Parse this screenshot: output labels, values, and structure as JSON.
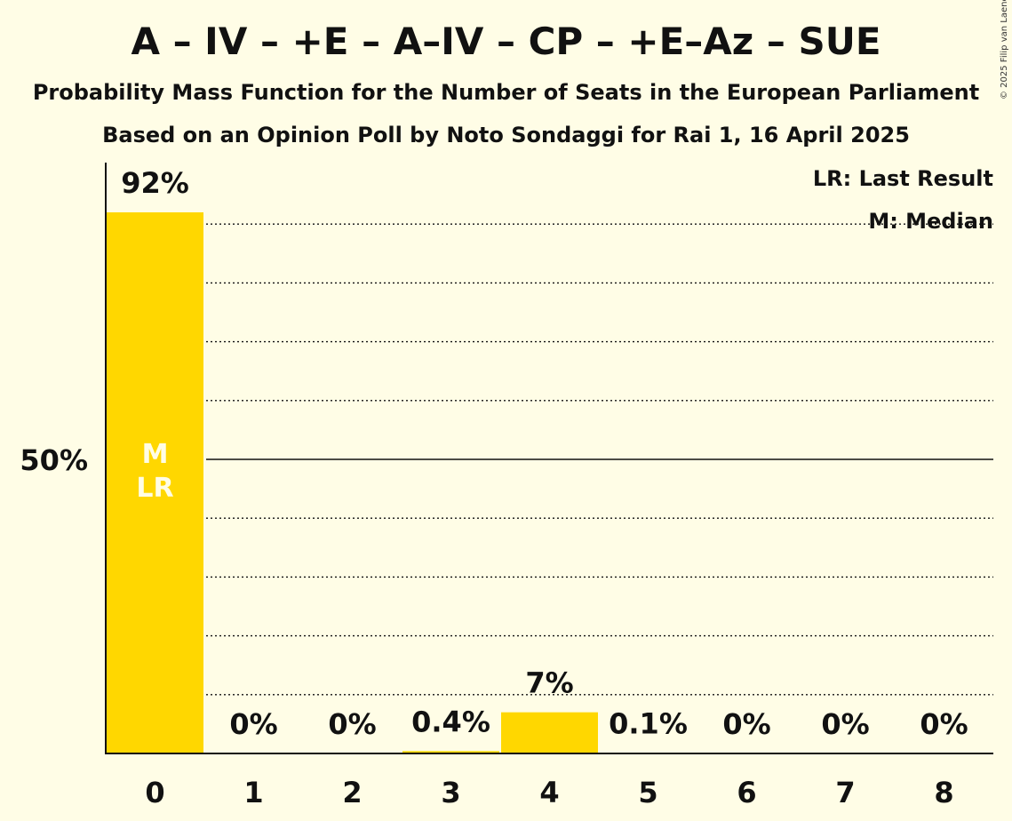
{
  "title": "A – IV – +E – A–IV – CP – +E–Az – SUE",
  "subtitle": "Probability Mass Function for the Number of Seats in the European Parliament",
  "source": "Based on an Opinion Poll by Noto Sondaggi for Rai 1, 16 April 2025",
  "copyright": "© 2025 Filip van Laenen",
  "colors": {
    "background": "#fffde6",
    "bar": "#ffd700",
    "text": "#111111",
    "inbar_text": "#fffde6"
  },
  "legend": {
    "last_result": "LR: Last Result",
    "median": "M: Median"
  },
  "chart_data": {
    "type": "bar",
    "categories": [
      "0",
      "1",
      "2",
      "3",
      "4",
      "5",
      "6",
      "7",
      "8"
    ],
    "values": [
      92,
      0,
      0,
      0.4,
      7,
      0.1,
      0,
      0,
      0
    ],
    "value_labels": [
      "92%",
      "0%",
      "0%",
      "0.4%",
      "7%",
      "0.1%",
      "0%",
      "0%",
      "0%"
    ],
    "bar_markers": [
      "M",
      "LR"
    ],
    "marker_category": "0",
    "ylim": [
      0,
      100
    ],
    "y_ticks": [
      {
        "value": 50,
        "label": "50%"
      }
    ],
    "gridlines": [
      10,
      20,
      30,
      40,
      60,
      70,
      80,
      90
    ],
    "solid_line": 50,
    "grid": true,
    "legend_position": "top-right"
  }
}
